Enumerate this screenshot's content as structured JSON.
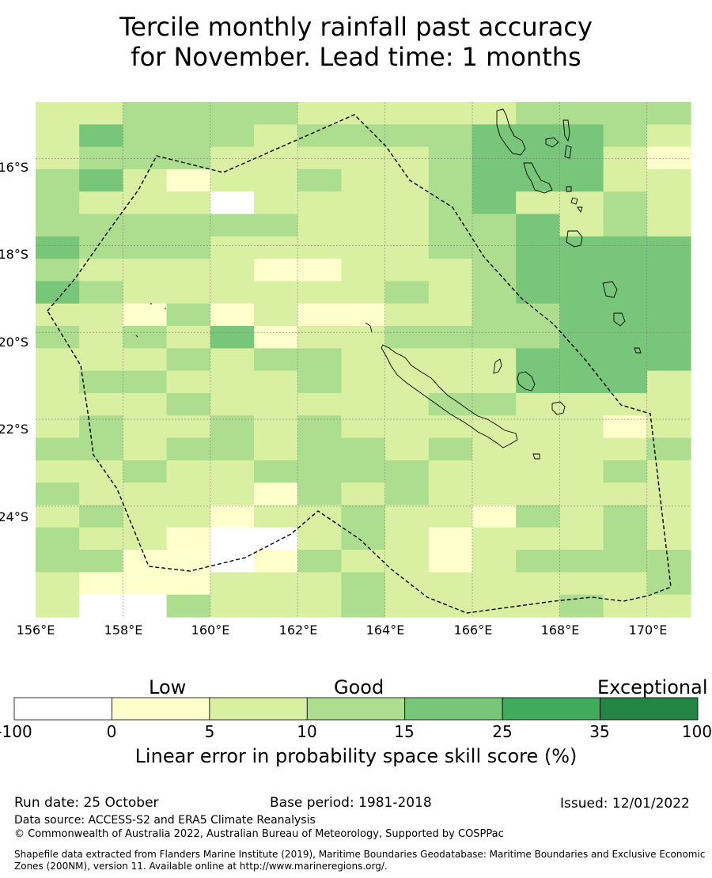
{
  "title": {
    "line1": "Tercile monthly rainfall past accuracy",
    "line2": "for November. Lead time: 1 months"
  },
  "map": {
    "latitude_labels": [
      "16°S",
      "18°S",
      "20°S",
      "22°S",
      "24°S"
    ],
    "longitude_labels": [
      "156°E",
      "158°E",
      "160°E",
      "162°E",
      "164°E",
      "166°E",
      "168°E",
      "170°E"
    ],
    "lon_range": [
      156,
      171
    ],
    "lat_range": [
      -14.7,
      -26.55
    ],
    "grid_levels_note": "cell values are colour class index 0-6",
    "grid": [
      "223333222223333",
      "243332333344432",
      "233322222344421",
      "342122322344422",
      "322202222342232",
      "333333222334232",
      "433322222334444",
      "322221122234444",
      "432222223234444",
      "221312112233444",
      "323241223333444",
      "222323322224444",
      "233222322224442",
      "222322222332222",
      "232232322222212",
      "332332332322223",
      "223223333222232",
      "322221323222222",
      "232212232213232",
      "322100232122232",
      "331101322123333",
      "211122232222223",
      "200322232222322"
    ]
  },
  "colorbar": {
    "categories": [
      "Low",
      "Good",
      "Exceptional"
    ],
    "ticks": [
      "-100",
      "0",
      "5",
      "10",
      "15",
      "25",
      "35",
      "100"
    ],
    "colors": [
      "#ffffff",
      "#ffffcc",
      "#d9f0a3",
      "#addd8e",
      "#78c679",
      "#41ab5d",
      "#238443"
    ],
    "title": "Linear error in probability space skill score (%)"
  },
  "footer": {
    "run_date": "Run date: 25 October",
    "base_period": "Base period: 1981-2018",
    "issued": "Issued: 12/01/2022",
    "data_source": "Data source: ACCESS-S2 and ERA5 Climate Reanalysis",
    "copyright": "© Commonwealth of Australia 2022, Australian Bureau of Meteorology, Supported by COSPPac",
    "shapefile": "Shapefile data extracted from Flanders Marine Institute (2019), Maritime Boundaries Geodatabase: Maritime Boundaries and Exclusive Economic Zones (200NM), version 11. Available online at http://www.marineregions.org/."
  }
}
